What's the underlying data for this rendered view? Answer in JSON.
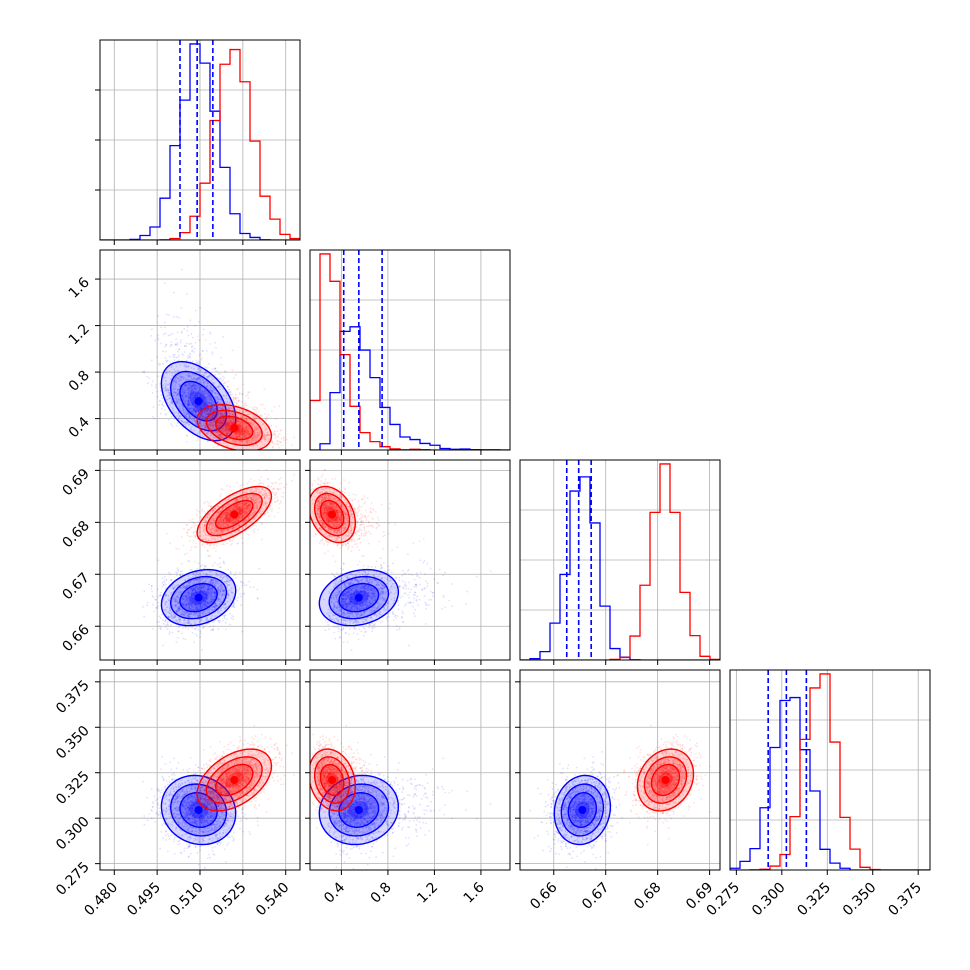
{
  "chart_data": {
    "type": "corner",
    "colors": {
      "series_a": "#0000ff",
      "series_b": "#ff0000"
    },
    "grid": true,
    "parameters": [
      {
        "range": [
          0.475,
          0.545
        ],
        "ticks": [
          0.48,
          0.495,
          0.51,
          0.525,
          0.54
        ],
        "tick_labels": [
          "0.480",
          "0.495",
          "0.510",
          "0.525",
          "0.540"
        ]
      },
      {
        "range": [
          0.13,
          1.85
        ],
        "ticks": [
          0.4,
          0.8,
          1.2,
          1.6
        ],
        "tick_labels": [
          "0.4",
          "0.8",
          "1.2",
          "1.6"
        ]
      },
      {
        "range": [
          0.6535,
          0.692
        ],
        "ticks": [
          0.66,
          0.67,
          0.68,
          0.69
        ],
        "tick_labels": [
          "0.66",
          "0.67",
          "0.68",
          "0.69"
        ]
      },
      {
        "range": [
          0.2715,
          0.3815
        ],
        "ticks": [
          0.275,
          0.3,
          0.325,
          0.35,
          0.375
        ],
        "tick_labels": [
          "0.275",
          "0.300",
          "0.325",
          "0.350",
          "0.375"
        ]
      }
    ],
    "series": [
      {
        "color": "#0000ff",
        "mean": [
          0.5095,
          0.55,
          0.6655,
          0.3045
        ],
        "std": [
          0.0065,
          0.17,
          0.0027,
          0.0095
        ],
        "corr": [
          [
            1,
            -0.45,
            0.25,
            -0.1
          ],
          [
            -0.45,
            1,
            0.2,
            0.1
          ],
          [
            0.25,
            0.2,
            1,
            0.1
          ],
          [
            -0.1,
            0.1,
            0.1,
            1
          ]
        ],
        "quantiles": [
          [
            0.503,
            0.509,
            0.5145
          ],
          [
            0.42,
            0.55,
            0.75
          ],
          [
            0.6625,
            0.6648,
            0.6672
          ],
          [
            0.2925,
            0.3025,
            0.3135
          ]
        ]
      },
      {
        "color": "#ff0000",
        "mean": [
          0.522,
          0.32,
          0.6815,
          0.321
        ],
        "std": [
          0.0065,
          0.1,
          0.0027,
          0.0085
        ],
        "corr": [
          [
            1,
            -0.35,
            0.65,
            0.45
          ],
          [
            -0.35,
            1,
            -0.3,
            -0.2
          ],
          [
            0.65,
            -0.3,
            1,
            0.2
          ],
          [
            0.45,
            -0.2,
            0.2,
            1
          ]
        ],
        "quantiles": []
      }
    ]
  }
}
